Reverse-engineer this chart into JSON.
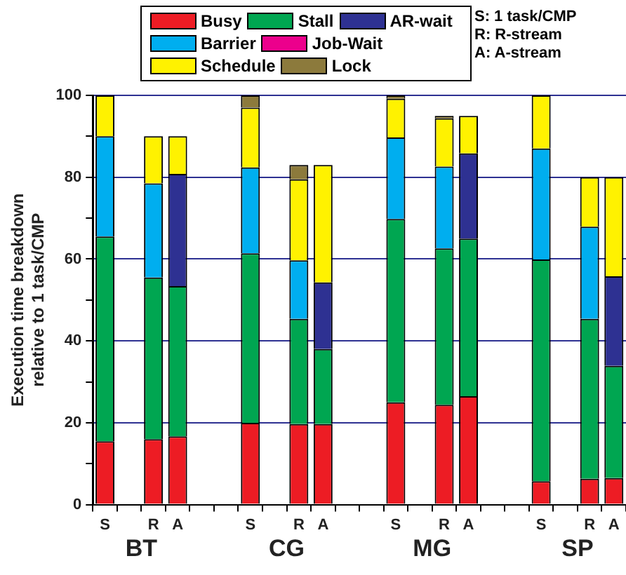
{
  "chart_data": {
    "type": "bar",
    "stacked": true,
    "ylabel": "Execution time breakdown\nrelative to 1 task/CMP",
    "categories": [
      "S",
      null,
      "R",
      "A",
      null,
      null,
      "S",
      null,
      "R",
      "A",
      null,
      null,
      "S",
      null,
      "R",
      "A",
      null,
      null,
      "S",
      null,
      "R",
      "A"
    ],
    "series": [
      {
        "name": "Busy",
        "color": "#ed1c24",
        "values": [
          15.5,
          null,
          16,
          16.7,
          null,
          null,
          20,
          null,
          19.7,
          19.7,
          null,
          null,
          25,
          null,
          24.4,
          26.5,
          null,
          null,
          5.7,
          null,
          6.3,
          6.5
        ]
      },
      {
        "name": "Stall",
        "color": "#00a651",
        "values": [
          50,
          null,
          39.5,
          36.7,
          null,
          null,
          41.4,
          null,
          25.7,
          18.3,
          null,
          null,
          44.8,
          null,
          38.2,
          38.5,
          null,
          null,
          54.2,
          null,
          39.1,
          27.4
        ]
      },
      {
        "name": "AR-wait",
        "color": "#2e3192",
        "values": [
          null,
          null,
          null,
          27.4,
          null,
          null,
          null,
          null,
          null,
          16.3,
          null,
          null,
          null,
          null,
          null,
          20.8,
          null,
          null,
          null,
          null,
          null,
          21.9
        ]
      },
      {
        "name": "Barrier",
        "color": "#00aeef",
        "values": [
          24.5,
          null,
          23,
          null,
          null,
          null,
          21,
          null,
          14.3,
          null,
          null,
          null,
          19.9,
          null,
          20,
          null,
          null,
          null,
          27.1,
          null,
          22.5,
          null
        ]
      },
      {
        "name": "Job-Wait",
        "color": "#ec008c",
        "values": [
          null,
          null,
          null,
          null,
          null,
          null,
          null,
          null,
          null,
          null,
          null,
          null,
          null,
          null,
          null,
          null,
          null,
          null,
          null,
          null,
          null,
          null
        ]
      },
      {
        "name": "Schedule",
        "color": "#fff200",
        "values": [
          10,
          null,
          11.5,
          9.2,
          null,
          null,
          14.6,
          null,
          19.8,
          28.7,
          null,
          null,
          9.5,
          null,
          11.8,
          9.2,
          null,
          null,
          13,
          null,
          12.1,
          24.2
        ]
      },
      {
        "name": "Lock",
        "color": "#8c7a3c",
        "values": [
          null,
          null,
          null,
          null,
          null,
          null,
          3,
          null,
          3.5,
          null,
          null,
          null,
          0.8,
          null,
          0.6,
          null,
          null,
          null,
          null,
          null,
          null,
          null
        ]
      }
    ],
    "ylim": [
      0,
      100
    ],
    "yticks": [
      0,
      {
        "value": 10,
        "label": null
      },
      20,
      {
        "value": 30,
        "label": null
      },
      40,
      {
        "value": 50,
        "label": null
      },
      60,
      {
        "value": 70,
        "label": null
      },
      80,
      {
        "value": 90,
        "label": null
      },
      100
    ],
    "grid": "y",
    "legend": "top",
    "annotations": [
      "S: 1 task/CMP",
      "R: R-stream",
      "A: A-stream",
      "BT",
      "CG",
      "MG",
      "SP"
    ]
  }
}
